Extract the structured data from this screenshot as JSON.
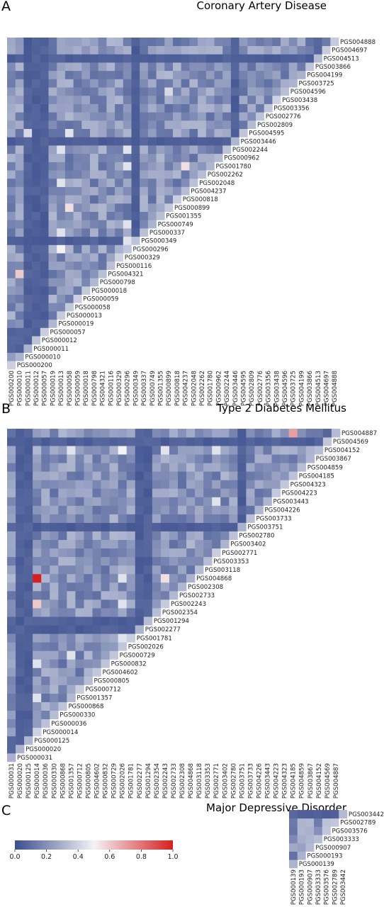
{
  "chart_data": [
    {
      "type": "heatmap",
      "panel_label": "A",
      "title": "Coronary Artery Disease",
      "labels": [
        "PGS000200",
        "PGS000010",
        "PGS000011",
        "PGS000012",
        "PGS000057",
        "PGS000019",
        "PGS000013",
        "PGS000058",
        "PGS000059",
        "PGS000018",
        "PGS000798",
        "PGS004321",
        "PGS000116",
        "PGS000329",
        "PGS000296",
        "PGS000349",
        "PGS000337",
        "PGS000749",
        "PGS001355",
        "PGS000899",
        "PGS000818",
        "PGS004237",
        "PGS002048",
        "PGS002262",
        "PGS001780",
        "PGS000962",
        "PGS002244",
        "PGS003446",
        "PGS004595",
        "PGS002809",
        "PGS002776",
        "PGS003356",
        "PGS003438",
        "PGS004596",
        "PGS003725",
        "PGS004199",
        "PGS003866",
        "PGS004513",
        "PGS004697",
        "PGS004888"
      ],
      "highlight_cells": [
        {
          "row": "PGS000010",
          "col": "PGS004321",
          "value": 0.6
        },
        {
          "row": "PGS000013",
          "col": "PGS000296",
          "value": 0.5
        },
        {
          "row": "PGS000013",
          "col": "PGS000337",
          "value": 0.45
        },
        {
          "row": "PGS000013",
          "col": "PGS002048",
          "value": 0.45
        },
        {
          "row": "PGS000013",
          "col": "PGS002244",
          "value": 0.45
        },
        {
          "row": "PGS000058",
          "col": "PGS000899",
          "value": 0.55
        },
        {
          "row": "PGS000058",
          "col": "PGS004595",
          "value": 0.45
        },
        {
          "row": "PGS000296",
          "col": "PGS000349",
          "value": 0.45
        },
        {
          "row": "PGS000296",
          "col": "PGS000749",
          "value": 0.45
        },
        {
          "row": "PGS000296",
          "col": "PGS001780",
          "value": 0.45
        },
        {
          "row": "PGS000296",
          "col": "PGS002244",
          "value": 0.45
        },
        {
          "row": "PGS004237",
          "col": "PGS001780",
          "value": 0.55
        },
        {
          "row": "PGS000899",
          "col": "PGS004596",
          "value": 0.42
        },
        {
          "row": "PGS000011",
          "col": "PGS004595",
          "value": 0.42
        }
      ],
      "dark_labels": [
        "PGS000011",
        "PGS000012",
        "PGS000057",
        "PGS000349",
        "PGS003446",
        "PGS004513"
      ]
    },
    {
      "type": "heatmap",
      "panel_label": "B",
      "title": "Type 2 Diabetes Mellitus",
      "labels": [
        "PGS000031",
        "PGS000020",
        "PGS000125",
        "PGS000014",
        "PGS000036",
        "PGS000330",
        "PGS000868",
        "PGS001357",
        "PGS000712",
        "PGS000805",
        "PGS004602",
        "PGS000832",
        "PGS000729",
        "PGS002026",
        "PGS001781",
        "PGS002277",
        "PGS001294",
        "PGS002354",
        "PGS002243",
        "PGS002733",
        "PGS002308",
        "PGS004868",
        "PGS003118",
        "PGS003353",
        "PGS002771",
        "PGS003402",
        "PGS002780",
        "PGS003751",
        "PGS003733",
        "PGS004226",
        "PGS003443",
        "PGS004223",
        "PGS004323",
        "PGS004185",
        "PGS004859",
        "PGS003867",
        "PGS004152",
        "PGS004569",
        "PGS004887"
      ],
      "highlight_cells": [
        {
          "row": "PGS000014",
          "col": "PGS004868",
          "value": 1.0
        },
        {
          "row": "PGS000014",
          "col": "PGS002243",
          "value": 0.6
        },
        {
          "row": "PGS000014",
          "col": "PGS000832",
          "value": 0.45
        },
        {
          "row": "PGS000014",
          "col": "PGS001357",
          "value": 0.45
        },
        {
          "row": "PGS002243",
          "col": "PGS004868",
          "value": 0.55
        },
        {
          "row": "PGS004185",
          "col": "PGS004887",
          "value": 0.7
        },
        {
          "row": "PGS002026",
          "col": "PGS001781",
          "value": 0.45
        },
        {
          "row": "PGS002026",
          "col": "PGS002243",
          "value": 0.45
        },
        {
          "row": "PGS002026",
          "col": "PGS004868",
          "value": 0.45
        },
        {
          "row": "PGS002026",
          "col": "PGS004152",
          "value": 0.5
        },
        {
          "row": "PGS001357",
          "col": "PGS000729",
          "value": 0.45
        },
        {
          "row": "PGS001357",
          "col": "PGS004152",
          "value": 0.45
        },
        {
          "row": "PGS002771",
          "col": "PGS003443",
          "value": 0.45
        },
        {
          "row": "PGS002771",
          "col": "PGS004152",
          "value": 0.45
        },
        {
          "row": "PGS002243",
          "col": "PGS004152",
          "value": 0.45
        }
      ],
      "dark_labels": [
        "PGS000020",
        "PGS000125",
        "PGS001294",
        "PGS002277",
        "PGS003751",
        "PGS004569"
      ]
    },
    {
      "type": "heatmap",
      "panel_label": "C",
      "title": "Major Depressive Disorder",
      "labels": [
        "PGS000139",
        "PGS000193",
        "PGS000907",
        "PGS003333",
        "PGS003576",
        "PGS002789",
        "PGS003442"
      ],
      "highlight_cells": [
        {
          "row": "PGS003576",
          "col": "PGS002789",
          "value": 0.35
        },
        {
          "row": "PGS000907",
          "col": "PGS003576",
          "value": 0.3
        }
      ],
      "dark_labels": [
        "PGS003442"
      ]
    }
  ],
  "colorbar": {
    "ticks": [
      "0.0",
      "0.2",
      "0.4",
      "0.6",
      "0.8",
      "1.0"
    ],
    "range": [
      0,
      1
    ],
    "colors": {
      "low": "#3b4e8e",
      "mid": "#f3f3f6",
      "high": "#d61f1f"
    }
  }
}
